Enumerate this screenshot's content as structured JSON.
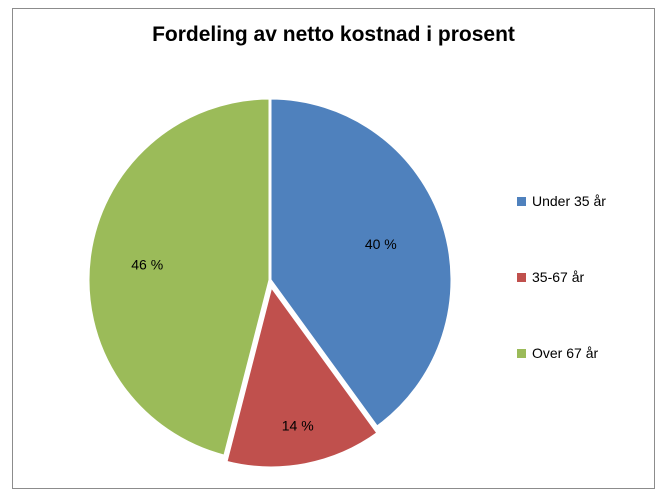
{
  "chart_data": {
    "type": "pie",
    "title": "Fordeling av netto kostnad i prosent",
    "categories": [
      "Under 35 år",
      "35-67 år",
      "Over 67 år"
    ],
    "values": [
      40,
      14,
      46
    ],
    "labels": [
      "40 %",
      "14 %",
      "46 %"
    ],
    "colors": [
      "#4f81bd",
      "#c0504d",
      "#9bbb59"
    ],
    "exploded": "35-67 år",
    "legend": "right"
  }
}
